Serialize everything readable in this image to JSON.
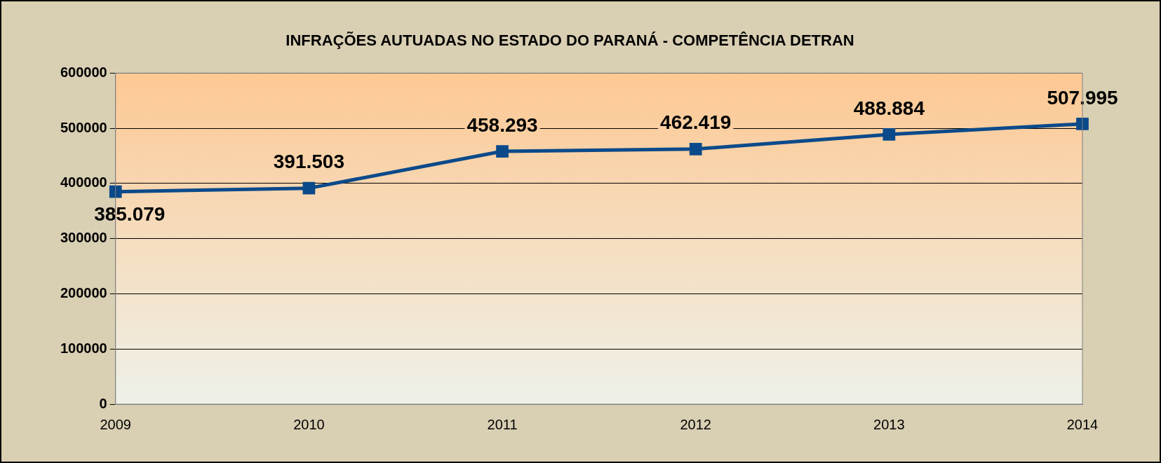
{
  "chart_data": {
    "type": "line",
    "title": "INFRAÇÕES AUTUADAS NO ESTADO DO PARANÁ - COMPETÊNCIA DETRAN",
    "categories": [
      "2009",
      "2010",
      "2011",
      "2012",
      "2013",
      "2014"
    ],
    "series": [
      {
        "color": "#0b4a8a",
        "values": [
          385079,
          391503,
          458293,
          462419,
          488884,
          507995
        ],
        "value_labels": [
          "385.079",
          "391.503",
          "458.293",
          "462.419",
          "488.884",
          "507.995"
        ]
      }
    ],
    "ylim": [
      0,
      600000
    ],
    "yticks": [
      0,
      100000,
      200000,
      300000,
      400000,
      500000,
      600000
    ],
    "grid": "y",
    "legend": false,
    "marker": "square",
    "line_style": "solid"
  }
}
